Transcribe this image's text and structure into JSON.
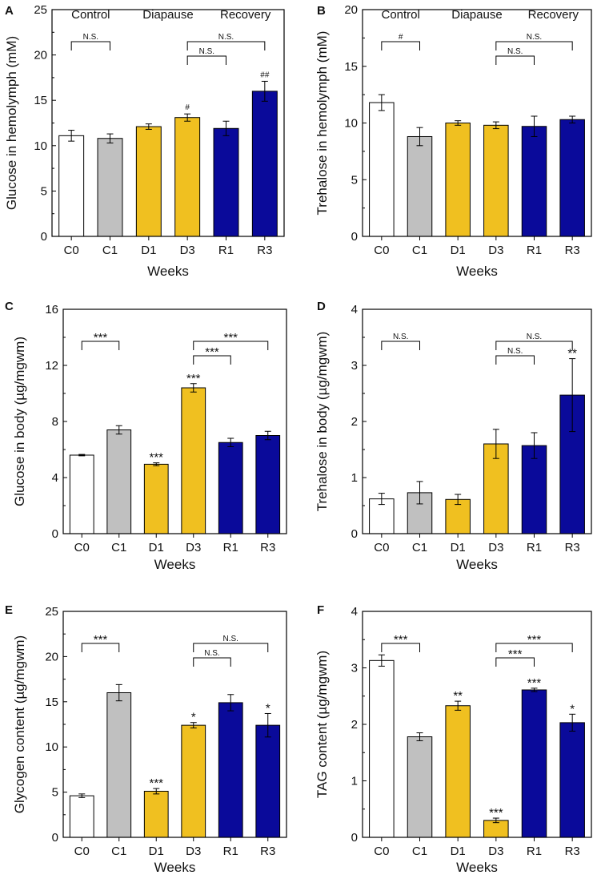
{
  "figure": {
    "xlabel": "Weeks",
    "categories": [
      "C0",
      "C1",
      "D1",
      "D3",
      "R1",
      "R3"
    ],
    "colors": [
      "#ffffff",
      "#c0c0c0",
      "#f0c020",
      "#f0c020",
      "#0a0a9a",
      "#0a0a9a"
    ],
    "groups": [
      "Control",
      "Diapause",
      "Recovery"
    ]
  },
  "chart_data": [
    {
      "type": "bar",
      "panel": "A",
      "title": "",
      "ylabel": "Glucose in hemolymph (mM)",
      "xlabel": "Weeks",
      "categories": [
        "C0",
        "C1",
        "D1",
        "D3",
        "R1",
        "R3"
      ],
      "values": [
        11.1,
        10.8,
        12.1,
        13.1,
        11.9,
        16.0
      ],
      "errors": [
        0.6,
        0.5,
        0.3,
        0.4,
        0.8,
        1.1
      ],
      "ylim": [
        0,
        25
      ],
      "yticks": [
        0,
        5,
        10,
        15,
        20,
        25
      ],
      "groups": [
        "Control",
        "Diapause",
        "Recovery"
      ],
      "annotations": [
        "",
        "",
        "",
        "#",
        "",
        "##"
      ],
      "brackets": [
        {
          "from": "C0",
          "to": "C1",
          "label": "N.S."
        },
        {
          "from": "D3",
          "to": "R3",
          "label": "N.S."
        },
        {
          "from": "D3",
          "to": "R1",
          "label": "N.S."
        }
      ]
    },
    {
      "type": "bar",
      "panel": "B",
      "title": "",
      "ylabel": "Trehalose in hemolymph (mM)",
      "xlabel": "Weeks",
      "categories": [
        "C0",
        "C1",
        "D1",
        "D3",
        "R1",
        "R3"
      ],
      "values": [
        11.8,
        8.8,
        10.0,
        9.8,
        9.7,
        10.3
      ],
      "errors": [
        0.7,
        0.8,
        0.2,
        0.3,
        0.9,
        0.3
      ],
      "ylim": [
        0,
        20
      ],
      "yticks": [
        0,
        5,
        10,
        15,
        20
      ],
      "groups": [
        "Control",
        "Diapause",
        "Recovery"
      ],
      "annotations": [
        "",
        "",
        "",
        "",
        "",
        ""
      ],
      "brackets": [
        {
          "from": "C0",
          "to": "C1",
          "label": "#"
        },
        {
          "from": "D3",
          "to": "R3",
          "label": "N.S."
        },
        {
          "from": "D3",
          "to": "R1",
          "label": "N.S."
        }
      ]
    },
    {
      "type": "bar",
      "panel": "C",
      "title": "",
      "ylabel": "Glucose in body (µg/mgwm)",
      "xlabel": "Weeks",
      "categories": [
        "C0",
        "C1",
        "D1",
        "D3",
        "R1",
        "R3"
      ],
      "values": [
        5.6,
        7.4,
        4.95,
        10.4,
        6.5,
        7.0
      ],
      "errors": [
        0.05,
        0.3,
        0.1,
        0.3,
        0.3,
        0.3
      ],
      "ylim": [
        0,
        16
      ],
      "yticks": [
        0,
        4,
        8,
        12,
        16
      ],
      "annotations": [
        "",
        "",
        "***",
        "***",
        "",
        ""
      ],
      "brackets": [
        {
          "from": "C0",
          "to": "C1",
          "label": "***"
        },
        {
          "from": "D3",
          "to": "R3",
          "label": "***"
        },
        {
          "from": "D3",
          "to": "R1",
          "label": "***"
        }
      ]
    },
    {
      "type": "bar",
      "panel": "D",
      "title": "",
      "ylabel": "Trehalose in body (µg/mgwm)",
      "xlabel": "Weeks",
      "categories": [
        "C0",
        "C1",
        "D1",
        "D3",
        "R1",
        "R3"
      ],
      "values": [
        0.62,
        0.73,
        0.61,
        1.6,
        1.57,
        2.47
      ],
      "errors": [
        0.1,
        0.2,
        0.09,
        0.26,
        0.23,
        0.65
      ],
      "ylim": [
        0,
        4
      ],
      "yticks": [
        0,
        1,
        2,
        3,
        4
      ],
      "annotations": [
        "",
        "",
        "",
        "",
        "",
        "**"
      ],
      "brackets": [
        {
          "from": "C0",
          "to": "C1",
          "label": "N.S."
        },
        {
          "from": "D3",
          "to": "R3",
          "label": "N.S."
        },
        {
          "from": "D3",
          "to": "R1",
          "label": "N.S."
        }
      ]
    },
    {
      "type": "bar",
      "panel": "E",
      "title": "",
      "ylabel": "Glycogen content (µg/mgwm)",
      "xlabel": "Weeks",
      "categories": [
        "C0",
        "C1",
        "D1",
        "D3",
        "R1",
        "R3"
      ],
      "values": [
        4.6,
        16.0,
        5.1,
        12.4,
        14.9,
        12.4
      ],
      "errors": [
        0.2,
        0.9,
        0.3,
        0.3,
        0.9,
        1.3
      ],
      "ylim": [
        0,
        25
      ],
      "yticks": [
        0,
        5,
        10,
        15,
        20,
        25
      ],
      "annotations": [
        "",
        "",
        "***",
        "*",
        "",
        "*"
      ],
      "brackets": [
        {
          "from": "C0",
          "to": "C1",
          "label": "***"
        },
        {
          "from": "D3",
          "to": "R3",
          "label": "N.S."
        },
        {
          "from": "D3",
          "to": "R1",
          "label": "N.S."
        }
      ]
    },
    {
      "type": "bar",
      "panel": "F",
      "title": "",
      "ylabel": "TAG content (µg/mgwm)",
      "xlabel": "Weeks",
      "categories": [
        "C0",
        "C1",
        "D1",
        "D3",
        "R1",
        "R3"
      ],
      "values": [
        3.13,
        1.78,
        2.33,
        0.3,
        2.61,
        2.03
      ],
      "errors": [
        0.1,
        0.07,
        0.08,
        0.04,
        0.03,
        0.15
      ],
      "ylim": [
        0,
        4
      ],
      "yticks": [
        0,
        1,
        2,
        3,
        4
      ],
      "annotations": [
        "",
        "",
        "**",
        "***",
        "***",
        "*"
      ],
      "brackets": [
        {
          "from": "C0",
          "to": "C1",
          "label": "***"
        },
        {
          "from": "D3",
          "to": "R3",
          "label": "***"
        },
        {
          "from": "D3",
          "to": "R1",
          "label": "***"
        }
      ]
    }
  ]
}
